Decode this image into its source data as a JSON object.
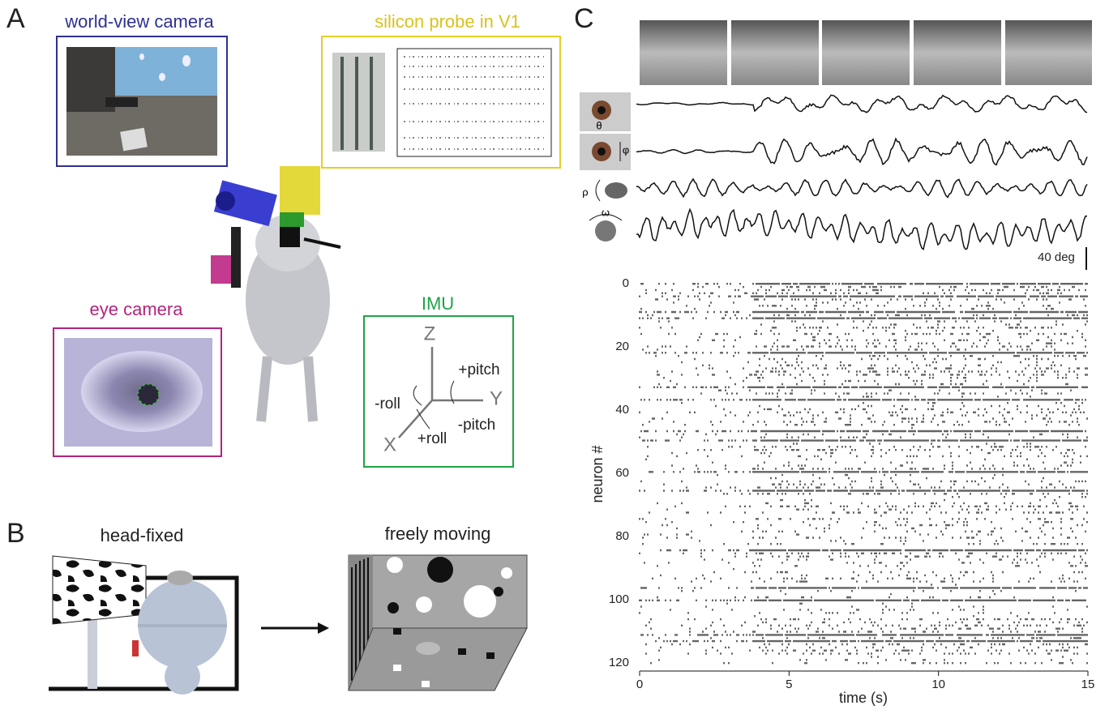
{
  "panel_a": {
    "label": "A",
    "world_view": {
      "title": "world-view camera"
    },
    "probe": {
      "title": "silicon probe in V1"
    },
    "eye": {
      "title": "eye camera"
    },
    "imu": {
      "title": "IMU",
      "axes": [
        "Z",
        "Y",
        "X"
      ],
      "rotations": [
        "+pitch",
        "-pitch",
        "-roll",
        "+roll"
      ]
    }
  },
  "panel_b": {
    "label": "B",
    "left": "head-fixed",
    "right": "freely moving"
  },
  "panel_c": {
    "label": "C",
    "traces": [
      "θ",
      "φ",
      "ρ",
      "ω"
    ],
    "scale_bar": "40 deg",
    "raster": {
      "xlabel": "time (s)",
      "ylabel": "neuron #",
      "xlim": [
        0,
        15
      ],
      "ylim": [
        0,
        120
      ],
      "xticks": [
        0,
        5,
        10,
        15
      ],
      "yticks": [
        0,
        20,
        40,
        60,
        80,
        100,
        120
      ]
    }
  }
}
